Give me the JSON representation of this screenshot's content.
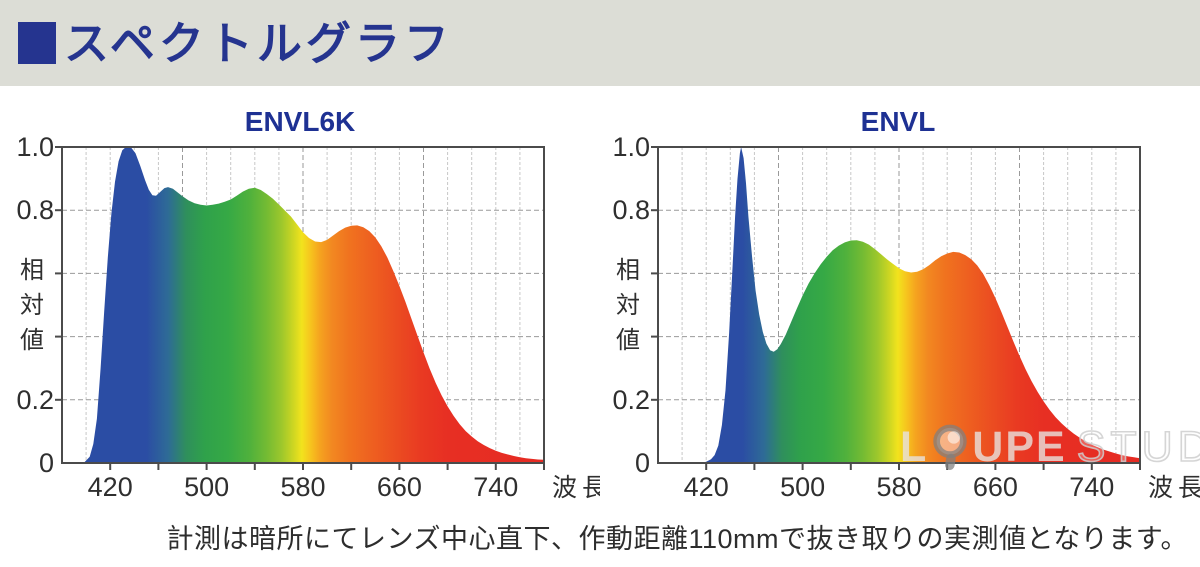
{
  "header": {
    "title": "スペクトルグラフ",
    "accent_color": "#25348f",
    "background_color": "#dcddd6"
  },
  "caption": {
    "text": "計測は暗所にてレンズ中心直下、作動距離110mmで抜き取りの実測値となります。"
  },
  "watermark": {
    "part1": "L",
    "part2": "UPE",
    "part3": "STUDIO"
  },
  "spectrum_gradient": [
    [
      380,
      "#2b4da4"
    ],
    [
      450,
      "#2b4da4"
    ],
    [
      468,
      "#2e6b96"
    ],
    [
      483,
      "#2f8f5c"
    ],
    [
      498,
      "#2fa14b"
    ],
    [
      518,
      "#36a945"
    ],
    [
      536,
      "#50b13c"
    ],
    [
      550,
      "#74bb33"
    ],
    [
      562,
      "#9cc72c"
    ],
    [
      572,
      "#cdd622"
    ],
    [
      579,
      "#f2e31d"
    ],
    [
      586,
      "#f6c51e"
    ],
    [
      594,
      "#f5a31f"
    ],
    [
      604,
      "#f28821"
    ],
    [
      618,
      "#f0731f"
    ],
    [
      638,
      "#ee5f20"
    ],
    [
      658,
      "#eb4c21"
    ],
    [
      678,
      "#e93a22"
    ],
    [
      700,
      "#e72f23"
    ],
    [
      780,
      "#e62b23"
    ]
  ],
  "chart_data": [
    {
      "id": "envl6k",
      "type": "area",
      "title": "ENVL6K",
      "xlabel": "波長",
      "ylabel": "相対値",
      "x_range": [
        380,
        780
      ],
      "ylim": [
        0,
        1.0
      ],
      "grid": true,
      "x_ticks": [
        420,
        500,
        580,
        660,
        740
      ],
      "y_tick_labels": [
        {
          "value": 1.0,
          "label": "1.0"
        },
        {
          "value": 0.8,
          "label": "0.8"
        },
        {
          "value": 0.2,
          "label": "0.2"
        },
        {
          "value": 0,
          "label": "0"
        }
      ],
      "points": [
        [
          380,
          0
        ],
        [
          398,
          0
        ],
        [
          403,
          0.02
        ],
        [
          406,
          0.06
        ],
        [
          409,
          0.14
        ],
        [
          412,
          0.3
        ],
        [
          415,
          0.48
        ],
        [
          418,
          0.65
        ],
        [
          421,
          0.79
        ],
        [
          424,
          0.89
        ],
        [
          427,
          0.955
        ],
        [
          430,
          0.99
        ],
        [
          433,
          1.0
        ],
        [
          437,
          1.0
        ],
        [
          441,
          0.98
        ],
        [
          445,
          0.94
        ],
        [
          449,
          0.895
        ],
        [
          452,
          0.865
        ],
        [
          455,
          0.847
        ],
        [
          458,
          0.846
        ],
        [
          461,
          0.856
        ],
        [
          465,
          0.87
        ],
        [
          468,
          0.873
        ],
        [
          472,
          0.868
        ],
        [
          476,
          0.856
        ],
        [
          480,
          0.844
        ],
        [
          485,
          0.831
        ],
        [
          490,
          0.822
        ],
        [
          495,
          0.817
        ],
        [
          500,
          0.815
        ],
        [
          505,
          0.817
        ],
        [
          510,
          0.821
        ],
        [
          515,
          0.827
        ],
        [
          520,
          0.834
        ],
        [
          525,
          0.846
        ],
        [
          530,
          0.859
        ],
        [
          535,
          0.868
        ],
        [
          540,
          0.871
        ],
        [
          545,
          0.864
        ],
        [
          550,
          0.851
        ],
        [
          555,
          0.836
        ],
        [
          560,
          0.818
        ],
        [
          565,
          0.799
        ],
        [
          570,
          0.78
        ],
        [
          575,
          0.755
        ],
        [
          580,
          0.73
        ],
        [
          585,
          0.712
        ],
        [
          590,
          0.701
        ],
        [
          595,
          0.699
        ],
        [
          600,
          0.706
        ],
        [
          605,
          0.72
        ],
        [
          610,
          0.734
        ],
        [
          615,
          0.745
        ],
        [
          620,
          0.751
        ],
        [
          625,
          0.752
        ],
        [
          630,
          0.746
        ],
        [
          635,
          0.734
        ],
        [
          640,
          0.714
        ],
        [
          645,
          0.686
        ],
        [
          650,
          0.65
        ],
        [
          655,
          0.607
        ],
        [
          660,
          0.56
        ],
        [
          665,
          0.51
        ],
        [
          670,
          0.457
        ],
        [
          675,
          0.403
        ],
        [
          680,
          0.35
        ],
        [
          685,
          0.3
        ],
        [
          690,
          0.254
        ],
        [
          695,
          0.214
        ],
        [
          700,
          0.179
        ],
        [
          705,
          0.149
        ],
        [
          710,
          0.123
        ],
        [
          715,
          0.101
        ],
        [
          720,
          0.084
        ],
        [
          725,
          0.069
        ],
        [
          730,
          0.057
        ],
        [
          735,
          0.047
        ],
        [
          740,
          0.039
        ],
        [
          745,
          0.032
        ],
        [
          750,
          0.027
        ],
        [
          755,
          0.022
        ],
        [
          760,
          0.018
        ],
        [
          765,
          0.015
        ],
        [
          770,
          0.013
        ],
        [
          775,
          0.011
        ],
        [
          780,
          0.01
        ]
      ]
    },
    {
      "id": "envl",
      "type": "area",
      "title": "ENVL",
      "xlabel": "波長",
      "ylabel": "相対値",
      "x_range": [
        380,
        780
      ],
      "ylim": [
        0,
        1.0
      ],
      "grid": true,
      "x_ticks": [
        420,
        500,
        580,
        660,
        740
      ],
      "y_tick_labels": [
        {
          "value": 1.0,
          "label": "1.0"
        },
        {
          "value": 0.8,
          "label": "0.8"
        },
        {
          "value": 0.2,
          "label": "0.2"
        },
        {
          "value": 0,
          "label": "0"
        }
      ],
      "points": [
        [
          380,
          0
        ],
        [
          416,
          0
        ],
        [
          420,
          0.004
        ],
        [
          424,
          0.012
        ],
        [
          427,
          0.025
        ],
        [
          430,
          0.055
        ],
        [
          433,
          0.12
        ],
        [
          436,
          0.23
        ],
        [
          439,
          0.41
        ],
        [
          442,
          0.63
        ],
        [
          444,
          0.78
        ],
        [
          446,
          0.9
        ],
        [
          448,
          0.98
        ],
        [
          449,
          1.0
        ],
        [
          451,
          0.965
        ],
        [
          453,
          0.885
        ],
        [
          455,
          0.78
        ],
        [
          458,
          0.655
        ],
        [
          461,
          0.545
        ],
        [
          464,
          0.47
        ],
        [
          467,
          0.415
        ],
        [
          470,
          0.378
        ],
        [
          473,
          0.357
        ],
        [
          476,
          0.352
        ],
        [
          479,
          0.36
        ],
        [
          482,
          0.377
        ],
        [
          486,
          0.406
        ],
        [
          490,
          0.442
        ],
        [
          495,
          0.487
        ],
        [
          500,
          0.53
        ],
        [
          505,
          0.568
        ],
        [
          510,
          0.601
        ],
        [
          515,
          0.629
        ],
        [
          520,
          0.653
        ],
        [
          525,
          0.673
        ],
        [
          530,
          0.688
        ],
        [
          535,
          0.698
        ],
        [
          540,
          0.704
        ],
        [
          545,
          0.705
        ],
        [
          550,
          0.7
        ],
        [
          555,
          0.691
        ],
        [
          560,
          0.677
        ],
        [
          565,
          0.661
        ],
        [
          570,
          0.645
        ],
        [
          575,
          0.63
        ],
        [
          580,
          0.616
        ],
        [
          585,
          0.607
        ],
        [
          590,
          0.603
        ],
        [
          595,
          0.605
        ],
        [
          600,
          0.613
        ],
        [
          605,
          0.626
        ],
        [
          610,
          0.641
        ],
        [
          615,
          0.654
        ],
        [
          620,
          0.663
        ],
        [
          625,
          0.668
        ],
        [
          630,
          0.666
        ],
        [
          635,
          0.658
        ],
        [
          640,
          0.645
        ],
        [
          645,
          0.625
        ],
        [
          650,
          0.597
        ],
        [
          655,
          0.562
        ],
        [
          660,
          0.522
        ],
        [
          665,
          0.478
        ],
        [
          670,
          0.431
        ],
        [
          675,
          0.384
        ],
        [
          680,
          0.339
        ],
        [
          685,
          0.297
        ],
        [
          690,
          0.259
        ],
        [
          695,
          0.225
        ],
        [
          700,
          0.195
        ],
        [
          705,
          0.168
        ],
        [
          710,
          0.145
        ],
        [
          715,
          0.125
        ],
        [
          720,
          0.108
        ],
        [
          725,
          0.093
        ],
        [
          730,
          0.08
        ],
        [
          735,
          0.068
        ],
        [
          740,
          0.058
        ],
        [
          745,
          0.05
        ],
        [
          750,
          0.042
        ],
        [
          755,
          0.036
        ],
        [
          760,
          0.03
        ],
        [
          765,
          0.025
        ],
        [
          770,
          0.021
        ],
        [
          775,
          0.018
        ],
        [
          780,
          0.015
        ]
      ]
    }
  ]
}
